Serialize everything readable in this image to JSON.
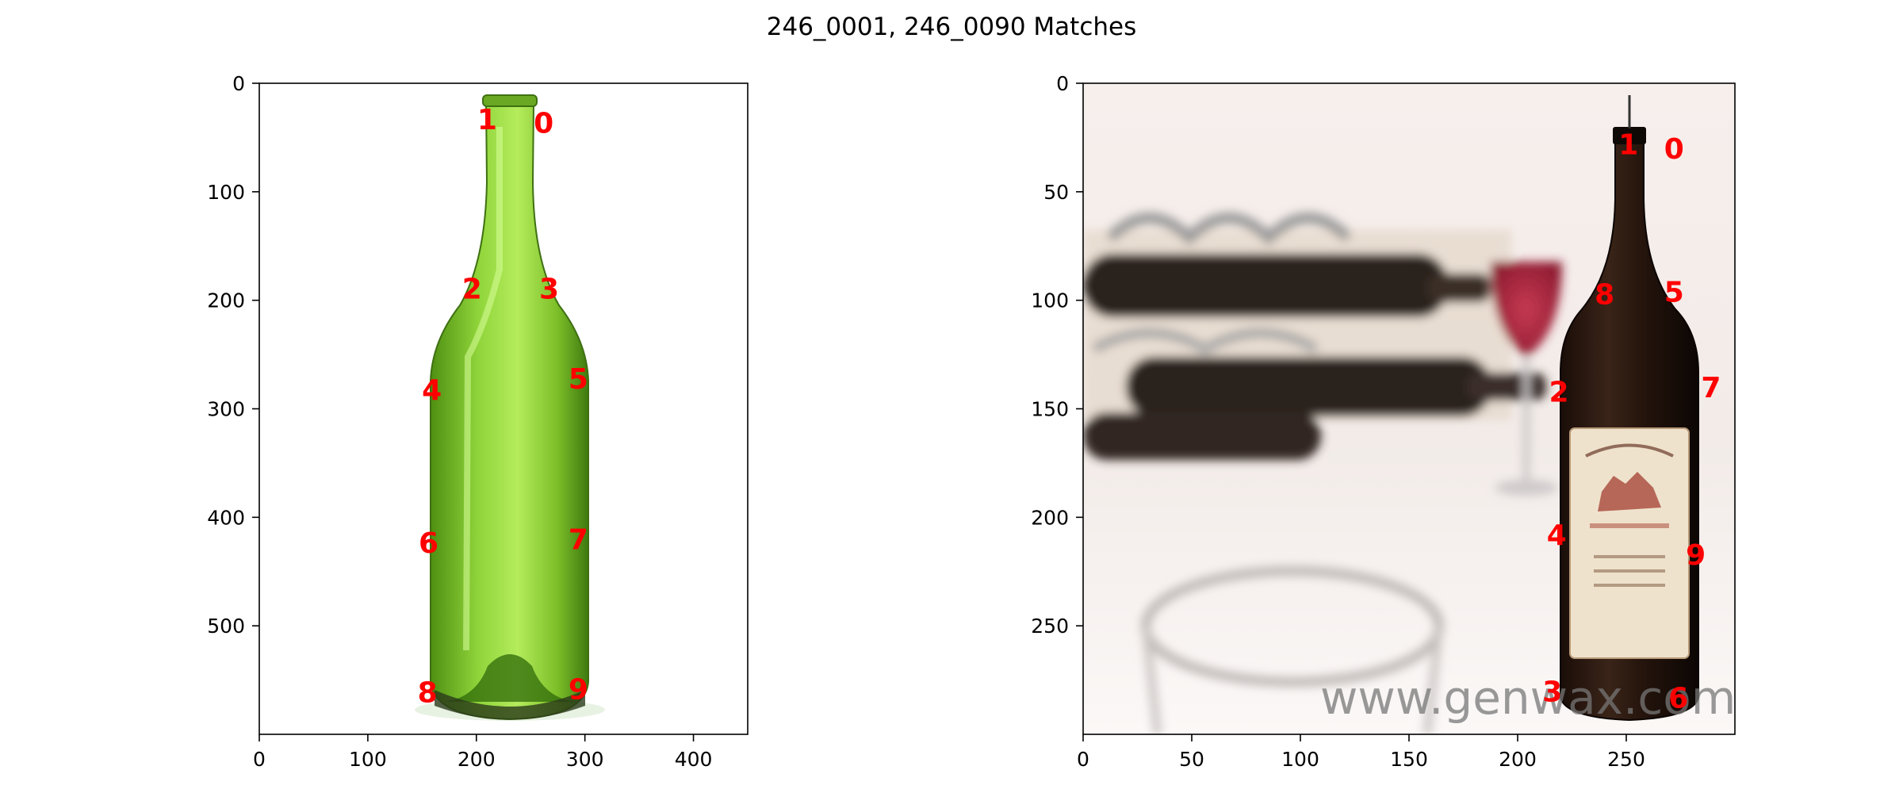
{
  "title": "246_0001, 246_0090 Matches",
  "colors": {
    "keypoint": "#ff0000",
    "axes": "#000000",
    "background": "#ffffff"
  },
  "chart_data": [
    {
      "type": "scatter",
      "image": "green glass wine bottle on white background",
      "xlim": [
        0,
        450
      ],
      "ylim": [
        600,
        0
      ],
      "xticks": [
        0,
        100,
        200,
        300,
        400
      ],
      "yticks": [
        0,
        100,
        200,
        300,
        400,
        500
      ],
      "xlabel": "",
      "ylabel": "",
      "points": [
        {
          "label": "0",
          "x": 262,
          "y": 36
        },
        {
          "label": "1",
          "x": 210,
          "y": 33
        },
        {
          "label": "2",
          "x": 196,
          "y": 189
        },
        {
          "label": "3",
          "x": 267,
          "y": 189
        },
        {
          "label": "4",
          "x": 159,
          "y": 282
        },
        {
          "label": "5",
          "x": 294,
          "y": 272
        },
        {
          "label": "6",
          "x": 156,
          "y": 423
        },
        {
          "label": "7",
          "x": 294,
          "y": 420
        },
        {
          "label": "8",
          "x": 155,
          "y": 561
        },
        {
          "label": "9",
          "x": 294,
          "y": 558
        }
      ]
    },
    {
      "type": "scatter",
      "image": "dark wine bottle with label, wine rack and glasses in background",
      "xlim": [
        0,
        300
      ],
      "ylim": [
        300,
        0
      ],
      "xticks": [
        0,
        50,
        100,
        150,
        200,
        250
      ],
      "yticks": [
        0,
        50,
        100,
        150,
        200,
        250
      ],
      "xlabel": "",
      "ylabel": "",
      "watermark": "www.genwax.com©",
      "points": [
        {
          "label": "0",
          "x": 272,
          "y": 30
        },
        {
          "label": "1",
          "x": 251,
          "y": 28
        },
        {
          "label": "2",
          "x": 219,
          "y": 142
        },
        {
          "label": "3",
          "x": 216,
          "y": 280
        },
        {
          "label": "4",
          "x": 218,
          "y": 208
        },
        {
          "label": "5",
          "x": 272,
          "y": 96
        },
        {
          "label": "6",
          "x": 274,
          "y": 283
        },
        {
          "label": "7",
          "x": 289,
          "y": 140
        },
        {
          "label": "8",
          "x": 240,
          "y": 97
        },
        {
          "label": "9",
          "x": 282,
          "y": 217
        }
      ]
    }
  ]
}
